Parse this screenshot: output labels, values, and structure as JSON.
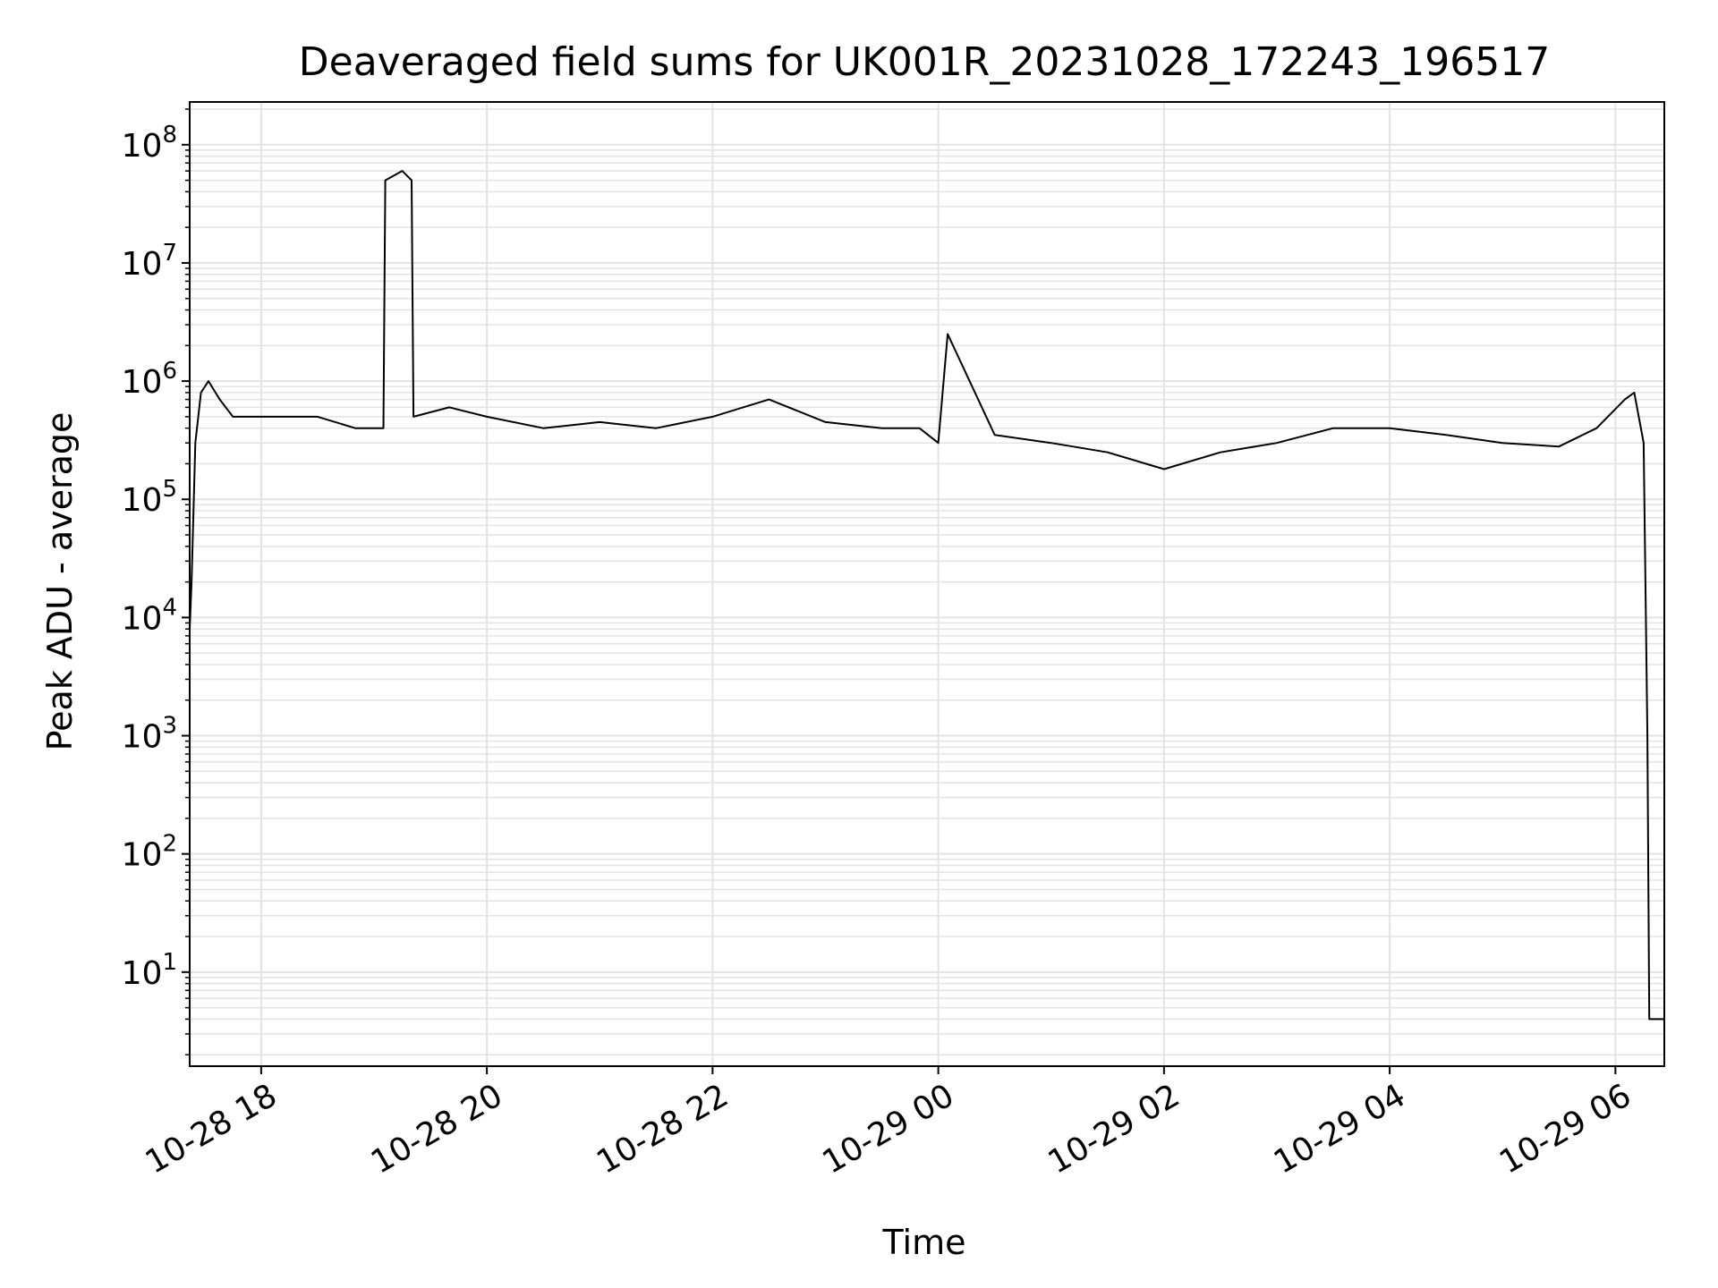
{
  "chart_data": {
    "type": "line",
    "title": "Deaveraged field sums for UK001R_20231028_172243_196517",
    "xlabel": "Time",
    "ylabel": "Peak ADU - average",
    "yscale": "log",
    "ylim": [
      1.6,
      230000000
    ],
    "xlim": [
      "2023-10-28 17:22",
      "2023-10-29 06:26"
    ],
    "grid": true,
    "x_ticks": [
      {
        "t": "2023-10-28 18:00",
        "label": "10-28 18"
      },
      {
        "t": "2023-10-28 20:00",
        "label": "10-28 20"
      },
      {
        "t": "2023-10-28 22:00",
        "label": "10-28 22"
      },
      {
        "t": "2023-10-29 00:00",
        "label": "10-29 00"
      },
      {
        "t": "2023-10-29 02:00",
        "label": "10-29 02"
      },
      {
        "t": "2023-10-29 04:00",
        "label": "10-29 04"
      },
      {
        "t": "2023-10-29 06:00",
        "label": "10-29 06"
      }
    ],
    "y_ticks": [
      {
        "value": 10,
        "base": "10",
        "exp": "1"
      },
      {
        "value": 100,
        "base": "10",
        "exp": "2"
      },
      {
        "value": 1000,
        "base": "10",
        "exp": "3"
      },
      {
        "value": 10000,
        "base": "10",
        "exp": "4"
      },
      {
        "value": 100000,
        "base": "10",
        "exp": "5"
      },
      {
        "value": 1000000,
        "base": "10",
        "exp": "6"
      },
      {
        "value": 10000000,
        "base": "10",
        "exp": "7"
      },
      {
        "value": 100000000,
        "base": "10",
        "exp": "8"
      }
    ],
    "series": [
      {
        "color": "#000000",
        "x": [
          "2023-10-28 17:22",
          "2023-10-28 17:23",
          "2023-10-28 17:25",
          "2023-10-28 17:28",
          "2023-10-28 17:32",
          "2023-10-28 17:38",
          "2023-10-28 17:45",
          "2023-10-28 17:55",
          "2023-10-28 18:10",
          "2023-10-28 18:30",
          "2023-10-28 18:50",
          "2023-10-28 19:05",
          "2023-10-28 19:06",
          "2023-10-28 19:15",
          "2023-10-28 19:20",
          "2023-10-28 19:21",
          "2023-10-28 19:40",
          "2023-10-28 20:00",
          "2023-10-28 20:30",
          "2023-10-28 21:00",
          "2023-10-28 21:30",
          "2023-10-28 22:00",
          "2023-10-28 22:30",
          "2023-10-28 23:00",
          "2023-10-28 23:30",
          "2023-10-28 23:50",
          "2023-10-29 00:00",
          "2023-10-29 00:05",
          "2023-10-29 00:30",
          "2023-10-29 01:00",
          "2023-10-29 01:30",
          "2023-10-29 02:00",
          "2023-10-29 02:30",
          "2023-10-29 03:00",
          "2023-10-29 03:30",
          "2023-10-29 04:00",
          "2023-10-29 04:30",
          "2023-10-29 05:00",
          "2023-10-29 05:30",
          "2023-10-29 05:50",
          "2023-10-29 06:05",
          "2023-10-29 06:10",
          "2023-10-29 06:15",
          "2023-10-29 06:17",
          "2023-10-29 06:18",
          "2023-10-29 06:26"
        ],
        "y": [
          8000,
          20000,
          300000,
          800000,
          1000000,
          700000,
          500000,
          500000,
          500000,
          500000,
          400000,
          400000,
          50000000,
          60000000,
          50000000,
          500000,
          600000,
          500000,
          400000,
          450000,
          400000,
          500000,
          700000,
          450000,
          400000,
          400000,
          300000,
          2500000,
          350000,
          300000,
          250000,
          180000,
          250000,
          300000,
          400000,
          400000,
          350000,
          300000,
          280000,
          400000,
          700000,
          800000,
          300000,
          1000,
          4,
          4
        ]
      }
    ]
  }
}
